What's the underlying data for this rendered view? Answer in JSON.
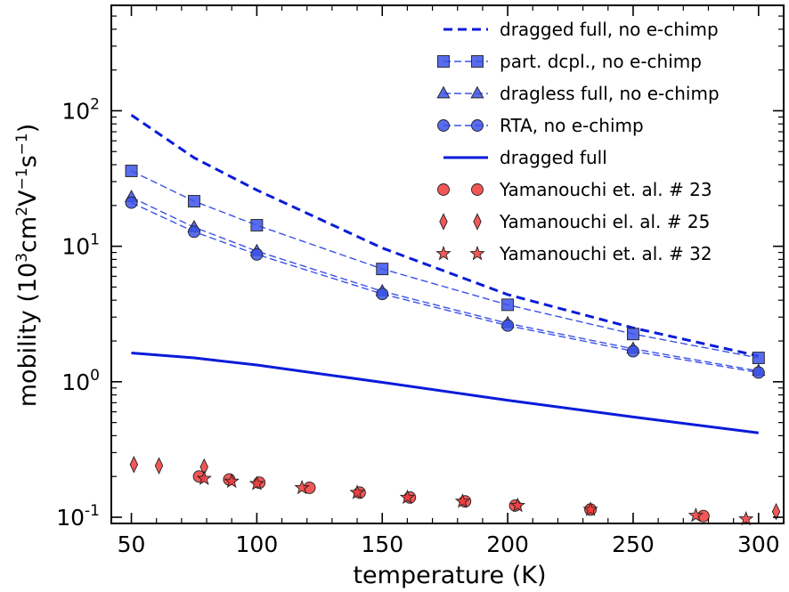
{
  "chart_data": {
    "type": "line",
    "xlabel": "temperature (K)",
    "ylabel": "mobility (10³cm²V⁻¹s⁻¹)",
    "ylabel_parts": {
      "prefix": "mobility (10",
      "sup1": "3",
      "mid1": "cm",
      "sup2": "2",
      "mid2": "V",
      "sup3": "−1",
      "mid3": "s",
      "sup4": "−1",
      "suffix": ")"
    },
    "xlim": [
      42,
      310
    ],
    "ylim": [
      0.09,
      600
    ],
    "yscale": "log",
    "x_ticks": [
      50,
      100,
      150,
      200,
      250,
      300
    ],
    "x_tick_labels": [
      "50",
      "100",
      "150",
      "200",
      "250",
      "300"
    ],
    "y_ticks": [
      {
        "value": 0.1,
        "base": "10",
        "exp": "-1"
      },
      {
        "value": 1,
        "base": "10",
        "exp": "0"
      },
      {
        "value": 10,
        "base": "10",
        "exp": "1"
      },
      {
        "value": 100,
        "base": "10",
        "exp": "2"
      }
    ],
    "legend_position": "top-right",
    "series": [
      {
        "name": "dragged full, no e-chimp",
        "style": "dashed",
        "marker": "none",
        "color": "#0a1bd9",
        "x": [
          50,
          75,
          100,
          150,
          200,
          250,
          300
        ],
        "y": [
          93,
          45,
          26,
          9.7,
          4.4,
          2.5,
          1.55
        ]
      },
      {
        "name": "part. dcpl., no e-chimp",
        "style": "dashed-thin",
        "marker": "square",
        "color": "#3c52e8",
        "x": [
          50,
          75,
          100,
          150,
          200,
          250,
          300
        ],
        "y": [
          36,
          21.5,
          14.3,
          6.8,
          3.7,
          2.25,
          1.5
        ]
      },
      {
        "name": "dragless full, no e-chimp",
        "style": "dashed-thin",
        "marker": "triangle",
        "color": "#3c52e8",
        "x": [
          50,
          75,
          100,
          150,
          200,
          250,
          300
        ],
        "y": [
          23,
          13.8,
          9.2,
          4.65,
          2.7,
          1.75,
          1.2
        ]
      },
      {
        "name": "RTA, no e-chimp",
        "style": "dashed-thin",
        "marker": "circle",
        "color": "#3c52e8",
        "x": [
          50,
          75,
          100,
          150,
          200,
          250,
          300
        ],
        "y": [
          21,
          12.8,
          8.7,
          4.45,
          2.6,
          1.68,
          1.17
        ]
      },
      {
        "name": "dragged full",
        "style": "solid",
        "marker": "none",
        "color": "#0a1bd9",
        "x": [
          50,
          75,
          100,
          150,
          200,
          250,
          300
        ],
        "y": [
          1.63,
          1.5,
          1.33,
          0.99,
          0.73,
          0.55,
          0.42
        ]
      },
      {
        "name": "Yamanouchi et. al. # 23",
        "style": "none",
        "marker": "circle",
        "color": "#f03a3a",
        "x": [
          77,
          89,
          101,
          121,
          141,
          161,
          183,
          203,
          233,
          278
        ],
        "y": [
          0.2,
          0.19,
          0.18,
          0.165,
          0.152,
          0.14,
          0.131,
          0.122,
          0.114,
          0.102
        ]
      },
      {
        "name": "Yamanouchi el. al. # 25",
        "style": "none",
        "marker": "diamond",
        "color": "#f03a3a",
        "x": [
          51,
          61,
          79,
          307
        ],
        "y": [
          0.245,
          0.24,
          0.235,
          0.11
        ]
      },
      {
        "name": "Yamanouchi et. al. # 32",
        "style": "none",
        "marker": "star",
        "color": "#f03a3a",
        "x": [
          79,
          90,
          100,
          118,
          140,
          160,
          182,
          204,
          233,
          275,
          295
        ],
        "y": [
          0.193,
          0.184,
          0.177,
          0.165,
          0.152,
          0.14,
          0.131,
          0.122,
          0.114,
          0.103,
          0.097
        ]
      }
    ]
  }
}
